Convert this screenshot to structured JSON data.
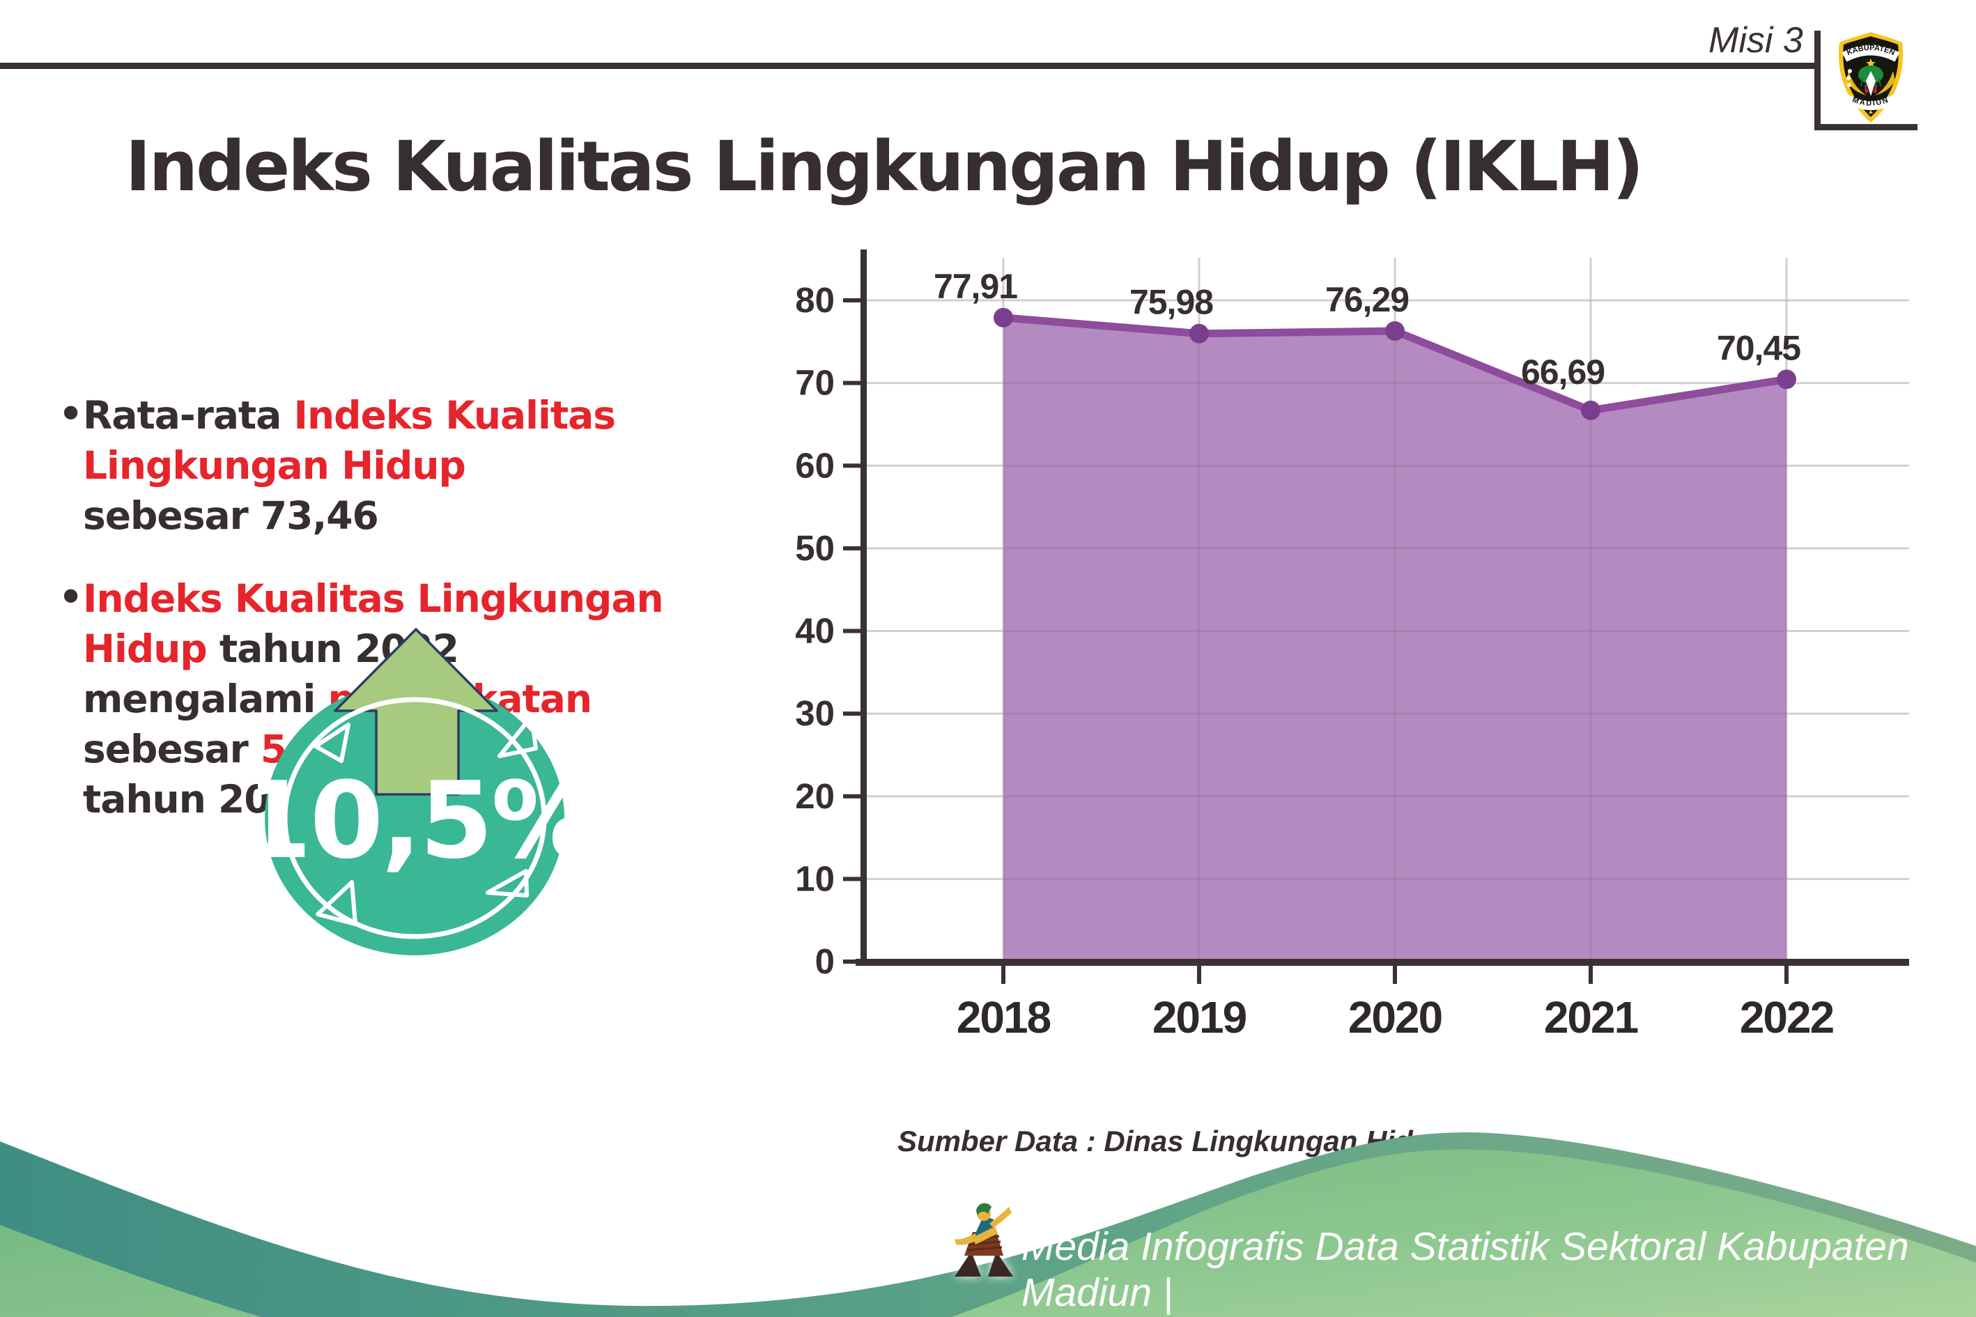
{
  "page": {
    "misi": "Misi 3",
    "title": "Indeks Kualitas Lingkungan Hidup (IKLH)"
  },
  "logo": {
    "top": "KABUPATEN",
    "bottom": "MADIUN"
  },
  "bullets": [
    {
      "segments": [
        {
          "text": "Rata-rata ",
          "color": "dark"
        },
        {
          "text": "Indeks Kualitas Lingkungan Hidup",
          "color": "red"
        },
        {
          "text": "\nsebesar 73,46",
          "color": "dark"
        }
      ]
    },
    {
      "segments": [
        {
          "text": "Indeks Kualitas Lingkungan Hidup",
          "color": "red"
        },
        {
          "text": " tahun 2022\nmengalami ",
          "color": "dark"
        },
        {
          "text": "peningkatan",
          "color": "red"
        },
        {
          "text": " sebesar ",
          "color": "dark"
        },
        {
          "text": "5,64%",
          "color": "red"
        },
        {
          "text": " dari\ntahun 2021",
          "color": "dark"
        }
      ]
    }
  ],
  "badge": {
    "value": "10,5%"
  },
  "chart_data": {
    "type": "area",
    "categories": [
      "2018",
      "2019",
      "2020",
      "2021",
      "2022"
    ],
    "values": [
      77.91,
      75.98,
      76.29,
      66.69,
      70.45
    ],
    "value_labels": [
      "77,91",
      "75,98",
      "76,29",
      "66,69",
      "70,45"
    ],
    "title": "",
    "xlabel": "",
    "ylabel": "",
    "ylim": [
      0,
      80
    ],
    "ytick_step": 10,
    "grid": true,
    "legend": false,
    "source": "Sumber Data : Dinas Lingkungan Hidup"
  },
  "footer": {
    "credit": "Media Infografis Data Statistik Sektoral Kabupaten Madiun |"
  },
  "colors": {
    "dark_text": "#362e30",
    "red_text": "#e6242b",
    "area_fill": "#b48bc0",
    "line": "#8e4c9c",
    "marker": "#7a3e8e",
    "badge_teal": "#3ab795",
    "arrow_green": "#a6ca7e",
    "arrow_outline": "#2e3d60",
    "footer_teal": "#3f8e83",
    "footer_green": "#7abb83"
  }
}
